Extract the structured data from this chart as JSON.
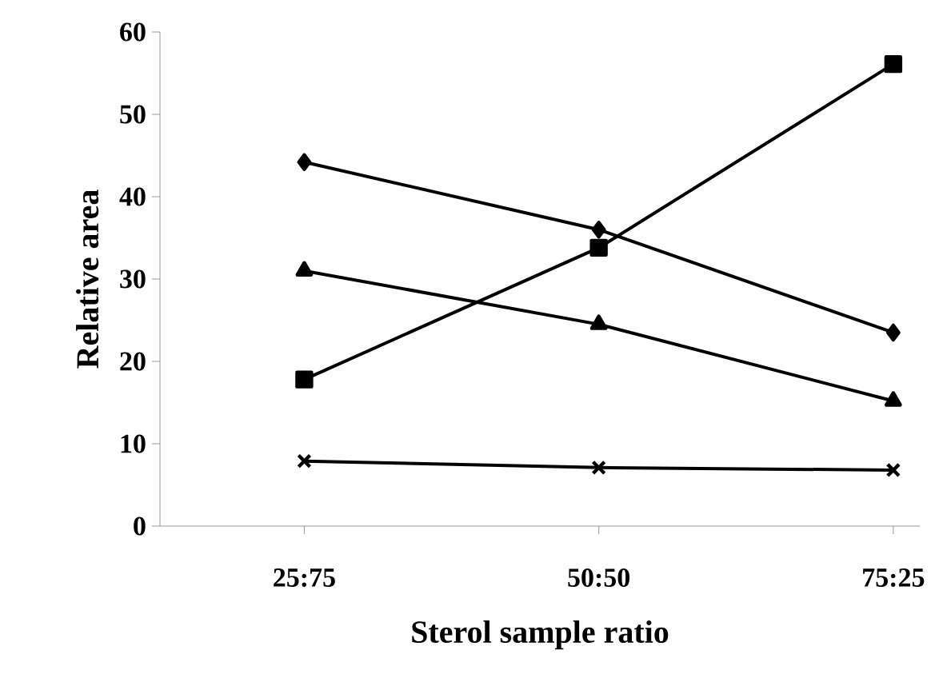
{
  "chart_data": {
    "type": "line",
    "xlabel": "Sterol sample ratio",
    "ylabel": "Relative area",
    "categories": [
      "25:75",
      "50:50",
      "75:25"
    ],
    "ylim": [
      0,
      60
    ],
    "yticks": [
      0,
      10,
      20,
      30,
      40,
      50,
      60
    ],
    "grid": false,
    "line_style": "solid",
    "series": [
      {
        "color": "#000000",
        "marker": "diamond",
        "values": [
          44.2,
          36,
          23.5
        ]
      },
      {
        "color": "#000000",
        "marker": "square",
        "values": [
          17.8,
          33.8,
          56.1
        ]
      },
      {
        "color": "#000000",
        "marker": "triangle",
        "values": [
          31,
          24.5,
          15.2
        ]
      },
      {
        "color": "#000000",
        "marker": "cross",
        "values": [
          7.9,
          7.1,
          6.8
        ]
      }
    ]
  }
}
